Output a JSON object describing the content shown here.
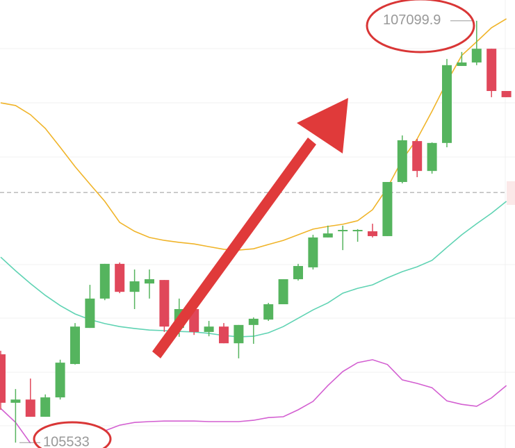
{
  "chart_data": {
    "type": "candlestick",
    "ylim": [
      105513,
      107177
    ],
    "up_color": "#55b45e",
    "down_color": "#e0475a",
    "ohlc": [
      [
        105861,
        105874,
        105655,
        105681
      ],
      [
        105681,
        105732,
        105533,
        105693
      ],
      [
        105693,
        105771,
        105629,
        105629
      ],
      [
        105629,
        105712,
        105629,
        105701
      ],
      [
        105701,
        105841,
        105693,
        105830
      ],
      [
        105825,
        105977,
        105823,
        105964
      ],
      [
        105959,
        106119,
        105959,
        106068
      ],
      [
        106068,
        106197,
        106062,
        106197
      ],
      [
        106197,
        106202,
        106088,
        106093
      ],
      [
        106093,
        106176,
        106029,
        106132
      ],
      [
        106124,
        106176,
        106068,
        106140
      ],
      [
        106137,
        106137,
        105944,
        105964
      ],
      [
        105959,
        106068,
        105926,
        106029
      ],
      [
        106029,
        106029,
        105933,
        105944
      ],
      [
        105944,
        105985,
        105928,
        105964
      ],
      [
        105964,
        105977,
        105902,
        105902
      ],
      [
        105902,
        105970,
        105846,
        105970
      ],
      [
        105970,
        105998,
        105900,
        105993
      ],
      [
        105990,
        106052,
        105985,
        106047
      ],
      [
        106047,
        106140,
        106047,
        106140
      ],
      [
        106140,
        106197,
        106135,
        106189
      ],
      [
        106184,
        106305,
        106176,
        106295
      ],
      [
        106295,
        106339,
        106295,
        106310
      ],
      [
        106318,
        106339,
        106248,
        106323
      ],
      [
        106318,
        106326,
        106279,
        106323
      ],
      [
        106318,
        106346,
        106295,
        106300
      ],
      [
        106300,
        106501,
        106300,
        106501
      ],
      [
        106501,
        106674,
        106496,
        106656
      ],
      [
        106653,
        106661,
        106519,
        106542
      ],
      [
        106542,
        106648,
        106532,
        106646
      ],
      [
        106646,
        106958,
        106630,
        106935
      ],
      [
        106932,
        106984,
        106932,
        106945
      ],
      [
        106945,
        107099.9,
        106935,
        106996
      ],
      [
        106996,
        106996,
        106816,
        106839
      ],
      [
        106839,
        106839,
        106816,
        106816
      ]
    ],
    "lines": [
      {
        "color": "#f0b429",
        "values": [
          106795,
          106785,
          106751,
          106700,
          106630,
          106558,
          106493,
          106429,
          106351,
          106318,
          106295,
          106284,
          106277,
          106271,
          106261,
          106251,
          106248,
          106253,
          106269,
          106284,
          106305,
          106326,
          106336,
          106344,
          106357,
          106398,
          106480,
          106584,
          106661,
          106764,
          106873,
          106971,
          107022,
          107074,
          107107
        ]
      },
      {
        "color": "#5fd3b3",
        "values": [
          106222,
          106171,
          106124,
          106080,
          106042,
          106011,
          105990,
          105975,
          105964,
          105957,
          105951,
          105949,
          105946,
          105944,
          105939,
          105931,
          105926,
          105928,
          105941,
          105964,
          105995,
          106026,
          106052,
          106088,
          106106,
          106119,
          106145,
          106168,
          106186,
          106210,
          106258,
          106305,
          106346,
          106385,
          106429
        ]
      },
      {
        "color": "#d35fd1",
        "values": [
          105660,
          105608,
          105531,
          null,
          null,
          null,
          null,
          105577,
          105598,
          105608,
          105611,
          105613,
          105613,
          105613,
          105611,
          105611,
          105611,
          105616,
          105626,
          105629,
          105655,
          105686,
          105745,
          105797,
          105830,
          105841,
          105823,
          105766,
          105753,
          105737,
          105688,
          105675,
          105668,
          105699,
          105745
        ]
      }
    ],
    "price_line": 106462,
    "max_label": 107099.9,
    "min_label": 105533
  }
}
